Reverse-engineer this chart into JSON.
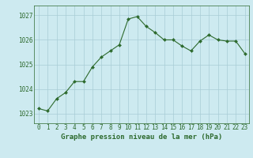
{
  "x": [
    0,
    1,
    2,
    3,
    4,
    5,
    6,
    7,
    8,
    9,
    10,
    11,
    12,
    13,
    14,
    15,
    16,
    17,
    18,
    19,
    20,
    21,
    22,
    23
  ],
  "y": [
    1023.2,
    1023.1,
    1023.6,
    1023.85,
    1024.3,
    1024.3,
    1024.9,
    1025.3,
    1025.55,
    1025.8,
    1026.85,
    1026.95,
    1026.55,
    1026.3,
    1026.0,
    1026.0,
    1025.75,
    1025.55,
    1025.95,
    1026.2,
    1026.0,
    1025.95,
    1025.95,
    1025.45
  ],
  "line_color": "#2d6a2d",
  "marker": "D",
  "markersize": 2.0,
  "linewidth": 0.8,
  "background_color": "#cdeaf0",
  "grid_color": "#a8cdd6",
  "xlabel": "Graphe pression niveau de la mer (hPa)",
  "xlabel_fontsize": 6.5,
  "xlabel_fontweight": "bold",
  "xlabel_color": "#2d6a2d",
  "tick_label_color": "#2d6a2d",
  "tick_fontsize": 5.5,
  "ylim": [
    1022.6,
    1027.4
  ],
  "yticks": [
    1023,
    1024,
    1025,
    1026,
    1027
  ],
  "xlim": [
    -0.5,
    23.5
  ],
  "xticks": [
    0,
    1,
    2,
    3,
    4,
    5,
    6,
    7,
    8,
    9,
    10,
    11,
    12,
    13,
    14,
    15,
    16,
    17,
    18,
    19,
    20,
    21,
    22,
    23
  ]
}
